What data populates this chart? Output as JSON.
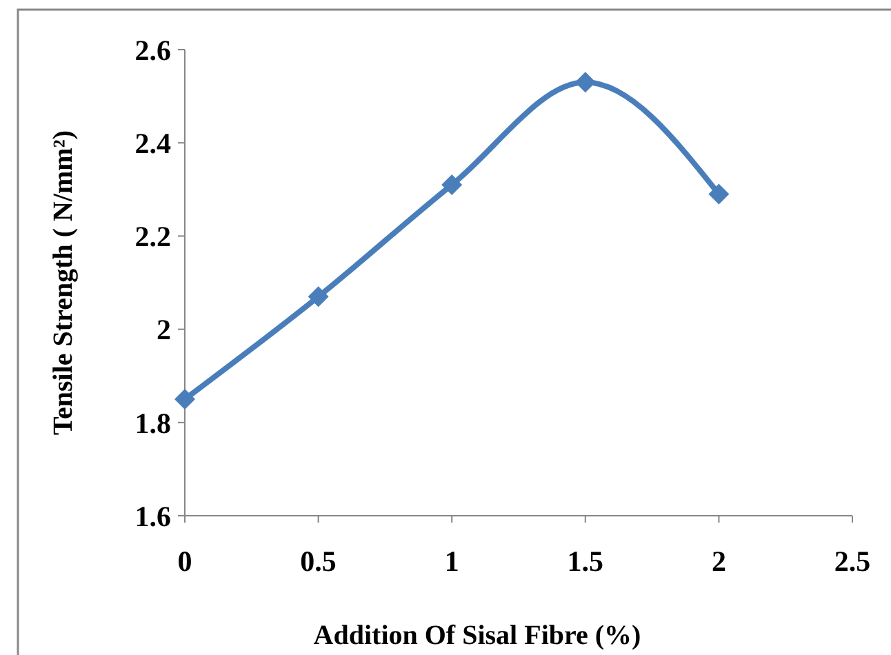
{
  "chart_data": {
    "type": "line",
    "xlabel": "Addition Of Sisal Fibre (%)",
    "ylabel": "Tensile Strength ( N/mm²)",
    "x": [
      0,
      0.5,
      1,
      1.5,
      2
    ],
    "series": [
      {
        "color": "#4a7ebb",
        "values": [
          1.85,
          2.07,
          2.31,
          2.53,
          2.29
        ]
      }
    ],
    "xlim": [
      0,
      2.5
    ],
    "xticks": [
      0,
      0.5,
      1,
      1.5,
      2,
      2.5
    ],
    "ylim": [
      1.6,
      2.6
    ],
    "yticks": [
      1.6,
      1.8,
      2,
      2.2,
      2.4,
      2.6
    ],
    "marker": "diamond",
    "line_style": "solid"
  }
}
